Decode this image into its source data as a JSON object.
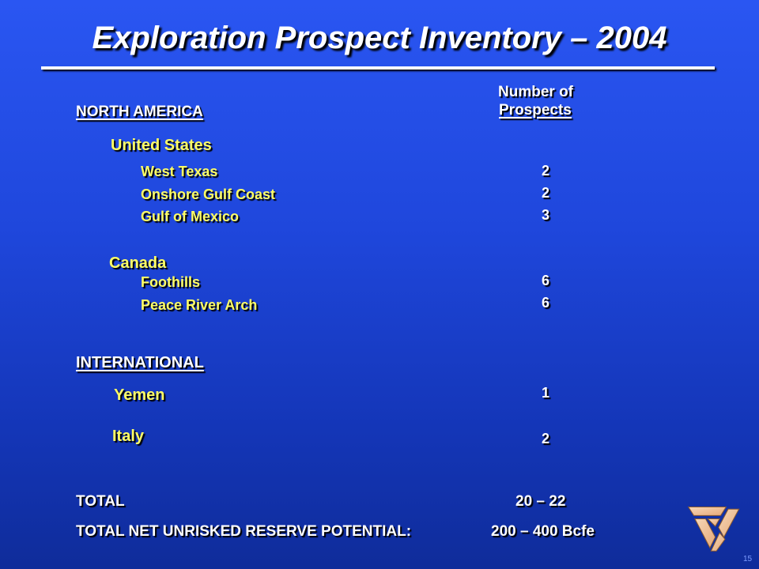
{
  "title": "Exploration Prospect Inventory – 2004",
  "column_header": {
    "line1": "Number of",
    "line2": "Prospects"
  },
  "north_america": {
    "label": "NORTH AMERICA",
    "united_states": {
      "label": "United States",
      "rows": [
        {
          "name": "West Texas",
          "value": "2"
        },
        {
          "name": "Onshore Gulf Coast",
          "value": "2"
        },
        {
          "name": "Gulf of Mexico",
          "value": "3"
        }
      ]
    },
    "canada": {
      "label": "Canada",
      "rows": [
        {
          "name": "Foothills",
          "value": "6"
        },
        {
          "name": "Peace River Arch",
          "value": "6"
        }
      ]
    }
  },
  "international": {
    "label": "INTERNATIONAL",
    "yemen": {
      "label": "Yemen",
      "value": "1"
    },
    "italy": {
      "label": "Italy",
      "value": "2"
    }
  },
  "total": {
    "label": "TOTAL",
    "value": "20 – 22"
  },
  "reserve": {
    "label": "TOTAL NET UNRISKED RESERVE POTENTIAL:",
    "value": "200 – 400 Bcfe"
  },
  "page_number": "15",
  "logo_icon": "company-logo-icon",
  "colors": {
    "background": "#1f47dc",
    "yellow_text": "#ffff66",
    "white_text": "#ffffff"
  }
}
